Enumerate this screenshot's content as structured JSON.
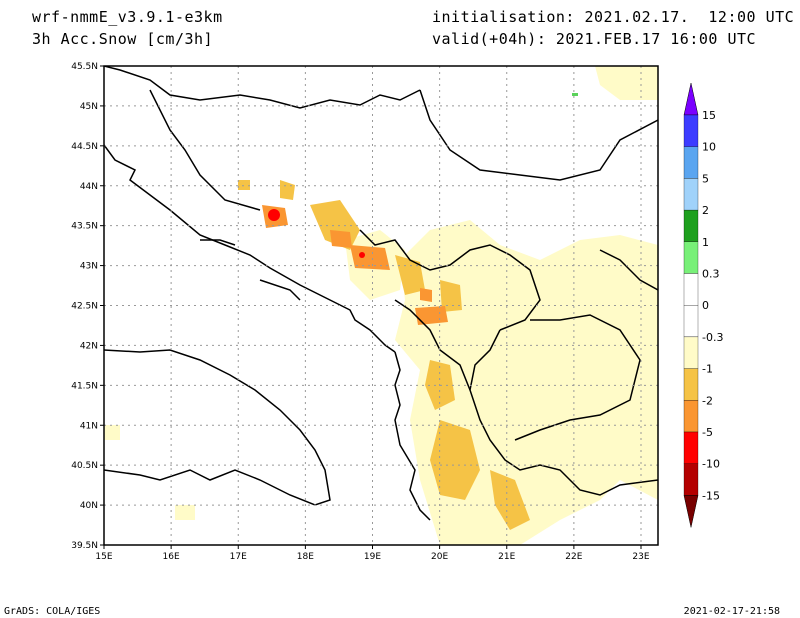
{
  "header": {
    "model": "wrf-nmmE_v3.9.1-e3km",
    "field": "3h Acc.Snow [cm/3h]",
    "init_label": "initialisation: 2021.02.17.  12:00 UTC",
    "valid_label": "valid(+04h): 2021.FEB.17 16:00 UTC"
  },
  "map": {
    "lat_labels": [
      "45.5N",
      "45N",
      "44.5N",
      "44N",
      "43.5N",
      "43N",
      "42.5N",
      "42N",
      "41.5N",
      "41N",
      "40.5N",
      "40N",
      "39.5N"
    ],
    "lon_labels": [
      "15E",
      "16E",
      "17E",
      "18E",
      "19E",
      "20E",
      "21E",
      "22E",
      "23E"
    ],
    "colorbar": {
      "labels": [
        "15",
        "10",
        "5",
        "2",
        "1",
        "0.3",
        "0",
        "-0.3",
        "-1",
        "-2",
        "-5",
        "-10",
        "-15"
      ],
      "colors": [
        "#7a00ff",
        "#3c3cff",
        "#5aa5f0",
        "#a0d2fa",
        "#1ea01e",
        "#78f078",
        "#ffffff",
        "#ffffff",
        "#fffbc8",
        "#f5c346",
        "#fa9632",
        "#ff0000",
        "#b40000",
        "#780000"
      ]
    }
  },
  "footer": {
    "left": "GrADS: COLA/IGES",
    "right": "2021-02-17-21:58"
  }
}
